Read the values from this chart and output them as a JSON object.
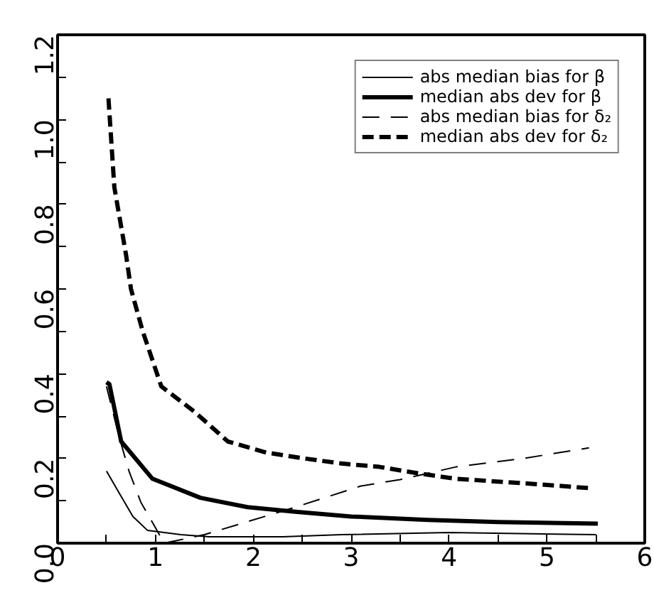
{
  "chart_data": {
    "type": "line",
    "xlim": [
      0,
      6
    ],
    "ylim": [
      0,
      1.2
    ],
    "xticks": [
      0,
      {
        "value": 0.5,
        "label": null
      },
      1,
      {
        "value": 1.5,
        "label": null
      },
      2,
      {
        "value": 2.5,
        "label": null
      },
      3,
      {
        "value": 3.5,
        "label": null
      },
      4,
      {
        "value": 4.5,
        "label": null
      },
      5,
      {
        "value": 5.5,
        "label": null
      },
      6
    ],
    "yticks": [
      {
        "value": 0,
        "label": "0.0"
      },
      {
        "value": 0.1,
        "label": null
      },
      0.2,
      {
        "value": 0.3,
        "label": null
      },
      0.4,
      {
        "value": 0.5,
        "label": null
      },
      0.6,
      {
        "value": 0.7,
        "label": null
      },
      0.8,
      {
        "value": 0.9,
        "label": null
      },
      {
        "value": 1,
        "label": "1.0"
      },
      {
        "value": 1.1,
        "label": null
      },
      1.2
    ],
    "grid": false,
    "legend": "top right",
    "marker": "none",
    "series": [
      {
        "name": "abs median bias for β",
        "color": "#000000",
        "line_style": "solid",
        "x": [
          0.5,
          0.63,
          0.77,
          0.92,
          1.26,
          1.55,
          2.3,
          2.9,
          4.0,
          5.5
        ],
        "values": [
          0.17,
          0.118,
          0.063,
          0.03,
          0.02,
          0.015,
          0.015,
          0.02,
          0.025,
          0.02
        ]
      },
      {
        "name": "median abs dev for β",
        "color": "#000000",
        "line_style": "solid",
        "x": [
          0.5,
          0.53,
          0.65,
          0.97,
          1.46,
          1.94,
          2.43,
          3.0,
          3.78,
          4.5,
          5.52
        ],
        "values": [
          0.38,
          0.375,
          0.24,
          0.152,
          0.107,
          0.085,
          0.074,
          0.063,
          0.055,
          0.05,
          0.046
        ]
      },
      {
        "name": "abs median bias for δ₂",
        "color": "#000000",
        "line_style": "dashed",
        "x": [
          0.5,
          0.63,
          0.73,
          0.85,
          1.09,
          1.5,
          1.93,
          2.43,
          3.1,
          3.5,
          4.07,
          4.76,
          5.43
        ],
        "values": [
          0.37,
          0.25,
          0.17,
          0.097,
          0.0,
          0.02,
          0.05,
          0.085,
          0.135,
          0.15,
          0.18,
          0.2,
          0.225
        ]
      },
      {
        "name": "median abs dev for δ₂",
        "color": "#000000",
        "line_style": "dashed",
        "x": [
          0.52,
          0.58,
          0.7,
          0.75,
          0.87,
          1.06,
          1.4,
          1.74,
          2.13,
          2.52,
          2.9,
          3.29,
          3.68,
          4.07,
          4.46,
          4.85,
          5.43
        ],
        "values": [
          1.05,
          0.84,
          0.68,
          0.6,
          0.5,
          0.37,
          0.31,
          0.24,
          0.214,
          0.2,
          0.188,
          0.18,
          0.165,
          0.152,
          0.146,
          0.14,
          0.13
        ]
      }
    ]
  }
}
